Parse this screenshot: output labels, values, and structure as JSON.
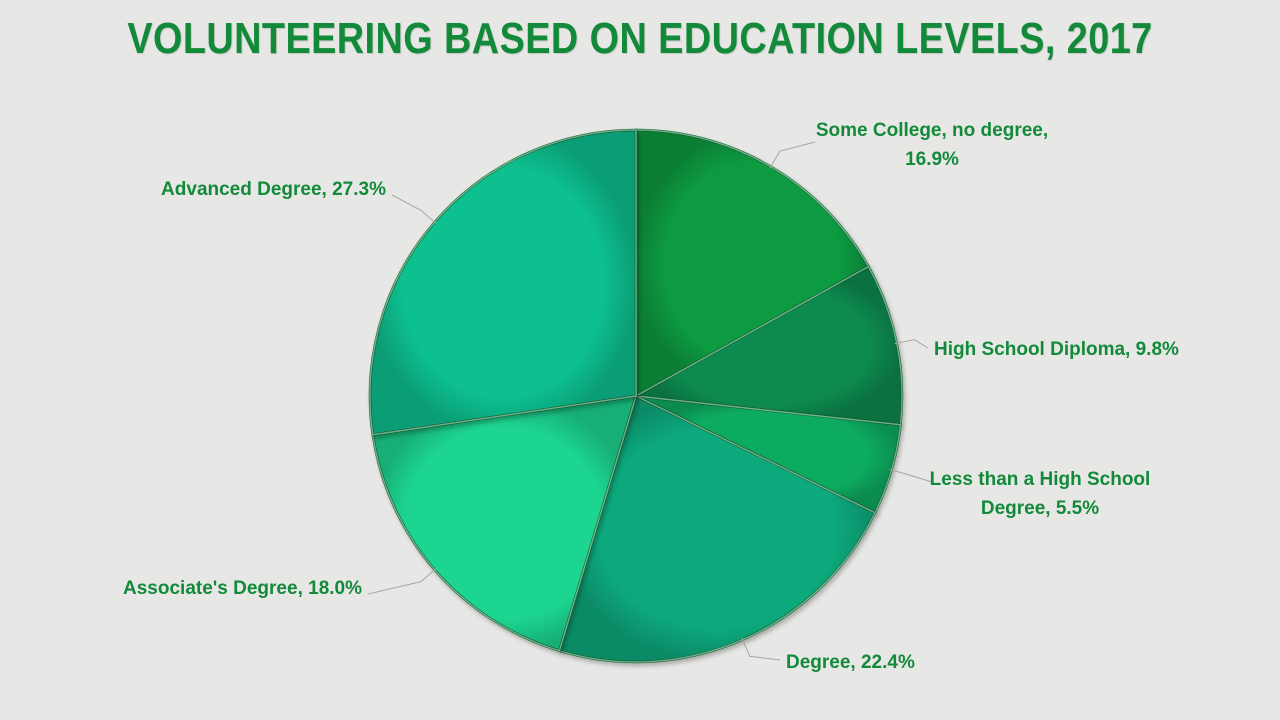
{
  "chart_data": {
    "type": "pie",
    "title": "VOLUNTEERING BASED ON EDUCATION LEVELS, 2017",
    "slices": [
      {
        "label_lines": [
          "Some College, no degree,",
          "16.9%"
        ],
        "value": 16.9,
        "color": "#099a40"
      },
      {
        "label_lines": [
          "High School Diploma, 9.8%"
        ],
        "value": 9.8,
        "color": "#078a4f"
      },
      {
        "label_lines": [
          "Less than a High School",
          "Degree, 5.5%"
        ],
        "value": 5.5,
        "color": "#0aab60"
      },
      {
        "label_lines": [
          "Degree, 22.4%"
        ],
        "value": 22.4,
        "color": "#0aa87c"
      },
      {
        "label_lines": [
          "Associate's Degree, 18.0%"
        ],
        "value": 18.0,
        "color": "#1dd590"
      },
      {
        "label_lines": [
          "Advanced Degree, 27.3%"
        ],
        "value": 27.3,
        "color": "#0cc090"
      }
    ],
    "start_angle": "12 o'clock",
    "direction": "clockwise",
    "legend": "none",
    "labels": "outside with leader lines"
  }
}
